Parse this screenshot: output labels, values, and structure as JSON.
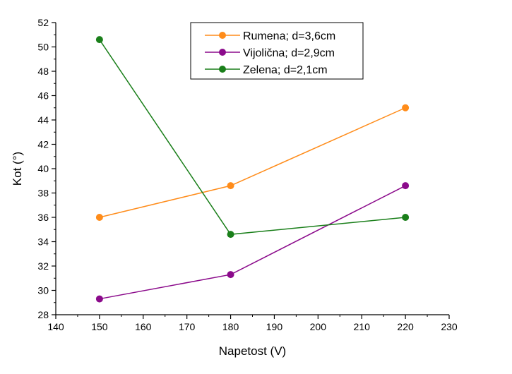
{
  "chart_data": {
    "type": "line",
    "xlabel": "Napetost (V)",
    "ylabel": "Kot (°)",
    "xlim": [
      140,
      230
    ],
    "ylim": [
      28,
      52
    ],
    "x_ticks": [
      140,
      150,
      160,
      170,
      180,
      190,
      200,
      210,
      220,
      230
    ],
    "y_ticks": [
      28,
      30,
      32,
      34,
      36,
      38,
      40,
      42,
      44,
      46,
      48,
      50,
      52
    ],
    "grid": false,
    "legend_position": "top-center",
    "series": [
      {
        "name": "Rumena; d=3,6cm",
        "color": "#FF8C1A",
        "x": [
          150,
          180,
          220
        ],
        "y": [
          36.0,
          38.6,
          45.0
        ]
      },
      {
        "name": "Vijolična; d=2,9cm",
        "color": "#8B0A8B",
        "x": [
          150,
          180,
          220
        ],
        "y": [
          29.3,
          31.3,
          38.6
        ]
      },
      {
        "name": "Zelena; d=2,1cm",
        "color": "#1A7F1A",
        "x": [
          150,
          180,
          220
        ],
        "y": [
          50.6,
          34.6,
          36.0
        ]
      }
    ]
  }
}
